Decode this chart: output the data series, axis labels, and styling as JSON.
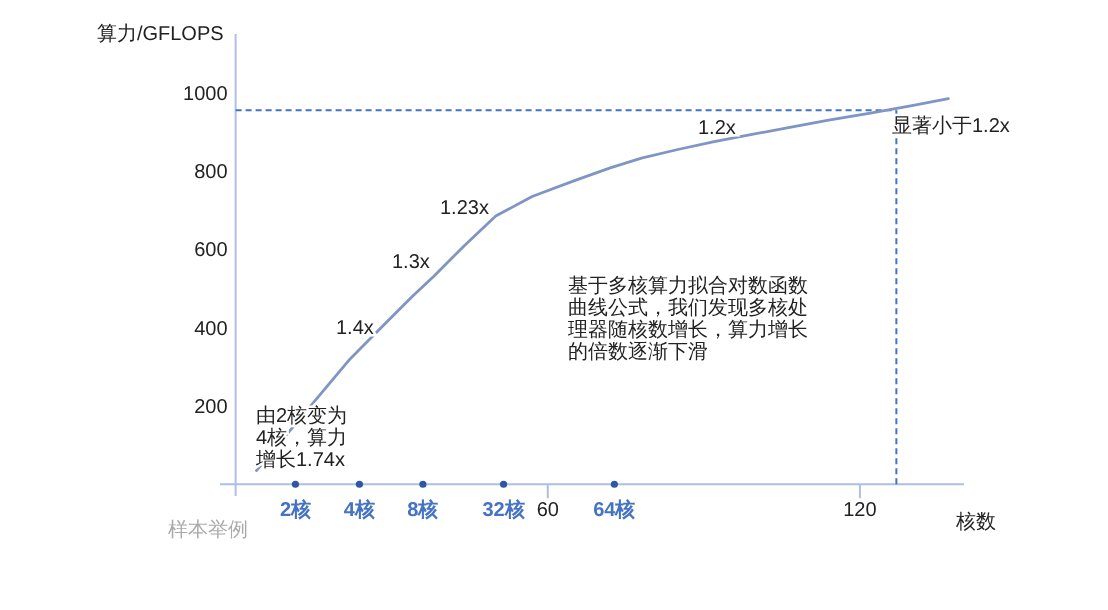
{
  "chart_data": {
    "type": "line",
    "ylabel": "算力/GFLOPS",
    "xlabel": "核数",
    "xlim": [
      -3,
      140
    ],
    "ylim": [
      -30,
      1150
    ],
    "xticks": [
      60,
      120
    ],
    "yticks": [
      200,
      400,
      600,
      800,
      1000
    ],
    "grid": false,
    "series": [
      {
        "color": "#7f95c4",
        "marker": "none",
        "line_style": "solid",
        "x": [
          4,
          10,
          16,
          22,
          29,
          34,
          38,
          44,
          50,
          57,
          65,
          72,
          78,
          85,
          92,
          99,
          106,
          114,
          122,
          130,
          137
        ],
        "values": [
          35,
          130,
          225,
          320,
          414,
          480,
          530,
          610,
          685,
          735,
          775,
          808,
          833,
          855,
          875,
          893,
          910,
          930,
          948,
          967,
          985
        ]
      },
      {
        "type": "scatter",
        "color": "#2e55a8",
        "marker": "circle",
        "x": [
          11.5,
          23.8,
          36,
          51.5,
          72.8
        ],
        "values": [
          0,
          0,
          0,
          0,
          0
        ]
      }
    ],
    "ref_lines": [
      {
        "axis": "y",
        "value": 955,
        "color": "#4472c4",
        "line_style": "dashed"
      },
      {
        "axis": "x",
        "value": 127,
        "color": "#4472c4",
        "line_style": "dashed"
      }
    ],
    "annotations": [
      "1.4x",
      "1.3x",
      "1.23x",
      "1.2x",
      "显著小于1.2x",
      "基于多核算力拟合对数函数曲线公式，我们发现多核处理器随核数增长，算力增长的倍数逐渐下滑",
      "由2核变为4核，算力增长1.74x",
      "样本举例",
      {
        "text": "2核",
        "x": 11.5,
        "y": 0
      },
      {
        "text": "4核",
        "x": 23.8,
        "y": 0
      },
      {
        "text": "8核",
        "x": 36,
        "y": 0
      },
      {
        "text": "32核",
        "x": 51.5,
        "y": 0
      },
      {
        "text": "64核",
        "x": 72.8,
        "y": 0
      }
    ]
  }
}
